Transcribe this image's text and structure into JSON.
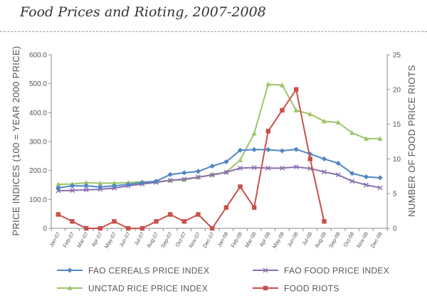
{
  "title": "Food Prices and Rioting, 2007-2008",
  "chart_data": {
    "type": "line",
    "title": "Food Prices and Rioting, 2007-2008",
    "categories": [
      "Jan-07",
      "Feb-07",
      "Mar-07",
      "Apr-07",
      "May-07",
      "Jun-07",
      "Jul-07",
      "Aug-07",
      "Sep-07",
      "Oct-07",
      "Nov-07",
      "Dec-07",
      "Jan-08",
      "Feb-08",
      "Mar-08",
      "Apr-08",
      "May-08",
      "Jun-08",
      "Jul-08",
      "Aug-08",
      "Sep-08",
      "Oct-08",
      "Nov-08",
      "Dec-08"
    ],
    "ylabel": "PRICE INDICES (100 = YEAR 2000 PRICE)",
    "y2label": "NUMBER OF FOOD PRICE RIOTS",
    "ylim": [
      0,
      600
    ],
    "yticks": [
      "0",
      "100.0",
      "200.0",
      "300.0",
      "400.0",
      "500.0",
      "600.0"
    ],
    "y2lim": [
      0,
      25
    ],
    "y2ticks": [
      "0",
      "5",
      "10",
      "15",
      "20",
      "25"
    ],
    "series": [
      {
        "name": "FAO CEREALS PRICE INDEX",
        "axis": "left",
        "color": "#4f86c6",
        "marker": "diamond",
        "values": [
          140,
          147,
          147,
          143,
          147,
          152,
          158,
          163,
          186,
          192,
          197,
          215,
          230,
          270,
          272,
          272,
          268,
          273,
          257,
          240,
          225,
          190,
          178,
          175
        ]
      },
      {
        "name": "UNCTAD RICE PRICE INDEX",
        "axis": "left",
        "color": "#9dc46a",
        "marker": "triangle",
        "values": [
          152,
          153,
          158,
          156,
          156,
          158,
          161,
          161,
          165,
          168,
          176,
          186,
          194,
          236,
          328,
          498,
          495,
          408,
          395,
          370,
          366,
          330,
          310,
          310
        ]
      },
      {
        "name": "FAO FOOD PRICE INDEX",
        "axis": "left",
        "color": "#8a6fb0",
        "marker": "x",
        "values": [
          130,
          131,
          133,
          135,
          139,
          147,
          153,
          159,
          166,
          170,
          177,
          184,
          194,
          208,
          210,
          208,
          208,
          212,
          207,
          195,
          185,
          163,
          150,
          140
        ]
      },
      {
        "name": "FOOD RIOTS",
        "axis": "right",
        "color": "#c9504b",
        "marker": "square",
        "values": [
          2,
          1,
          0,
          0,
          1,
          0,
          0,
          1,
          2,
          1,
          2,
          0,
          3,
          6,
          3,
          14,
          17,
          20,
          10,
          1,
          null,
          null,
          null,
          null
        ]
      }
    ],
    "legend": {
      "position": "bottom",
      "entries": [
        "FAO CEREALS PRICE INDEX",
        "UNCTAD RICE PRICE INDEX",
        "FAO FOOD PRICE INDEX",
        "FOOD RIOTS"
      ]
    },
    "grid": false
  }
}
